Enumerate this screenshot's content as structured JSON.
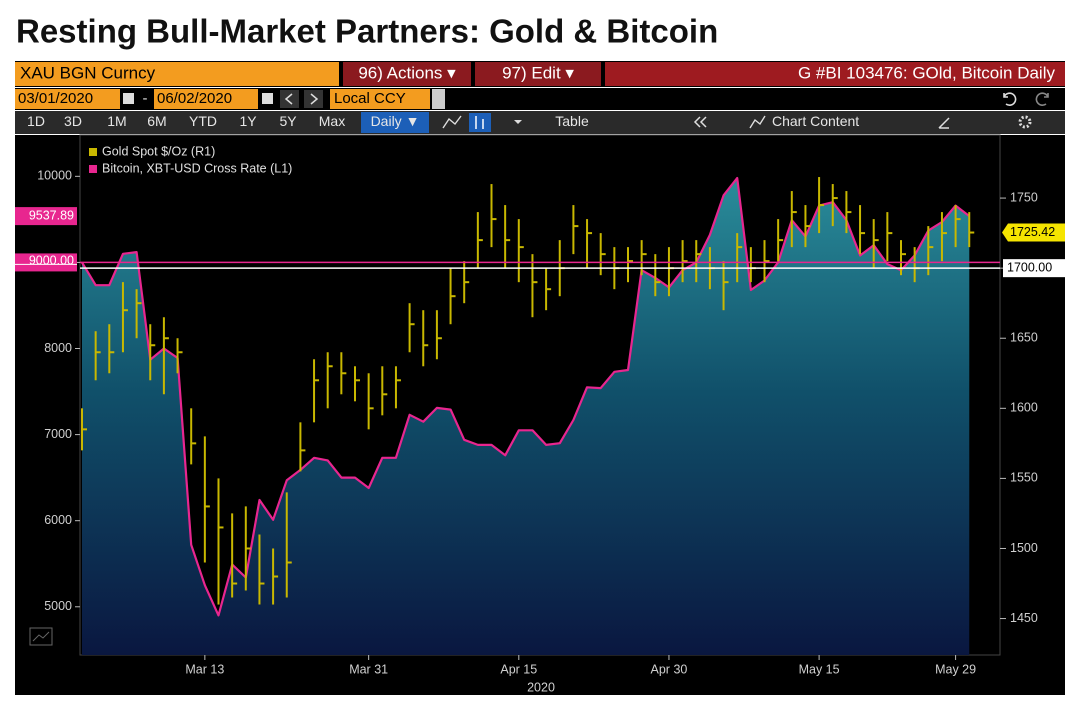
{
  "terminal": {
    "security": "XAU BGN Curncy",
    "actions": "96) Actions ▾",
    "edit": "97) Edit ▾",
    "chart_name": "G #BI 103476: GOld, Bitcoin Daily",
    "start_date": "03/01/2020",
    "date_sep": "-",
    "end_date": "06/02/2020",
    "currency": "Local CCY",
    "periods": [
      "1D",
      "3D",
      "1M",
      "6M",
      "YTD",
      "1Y",
      "5Y",
      "Max"
    ],
    "frequency": "Daily ▼",
    "table": "Table",
    "chart_content": "Chart Content"
  },
  "chart_data": {
    "type": "line",
    "title": "Resting Bull-Market Partners: Gold & Bitcoin",
    "xlabel": "2020",
    "categories": [
      null,
      null,
      null,
      null,
      null,
      null,
      null,
      null,
      null,
      "Mar 13",
      null,
      null,
      null,
      null,
      null,
      null,
      null,
      null,
      null,
      null,
      null,
      "Mar 31",
      null,
      null,
      null,
      null,
      null,
      null,
      null,
      null,
      null,
      null,
      "Apr 15",
      null,
      null,
      null,
      null,
      null,
      null,
      null,
      null,
      null,
      null,
      "Apr 30",
      null,
      null,
      null,
      null,
      null,
      null,
      null,
      null,
      null,
      null,
      "May 15",
      null,
      null,
      null,
      null,
      null,
      null,
      null,
      null,
      null,
      "May 29",
      null
    ],
    "series": [
      {
        "name": "Gold Spot $/Oz (R1)",
        "type": "hlc",
        "axis": "y2",
        "color": "#c9b800",
        "high": [
          1600,
          1655,
          1660,
          1690,
          1685,
          1660,
          1665,
          1650,
          1600,
          1580,
          1550,
          1525,
          1530,
          1510,
          1500,
          1540,
          1590,
          1635,
          1640,
          1640,
          1630,
          1625,
          1630,
          1630,
          1675,
          1670,
          1670,
          1700,
          1705,
          1740,
          1760,
          1745,
          1735,
          1710,
          1700,
          1720,
          1745,
          1735,
          1725,
          1715,
          1715,
          1720,
          1710,
          1715,
          1720,
          1720,
          1715,
          1705,
          1725,
          1715,
          1720,
          1735,
          1755,
          1745,
          1765,
          1760,
          1755,
          1745,
          1735,
          1740,
          1720,
          1715,
          1730,
          1740,
          1745,
          1740
        ],
        "low": [
          1570,
          1620,
          1625,
          1640,
          1650,
          1620,
          1610,
          1625,
          1560,
          1490,
          1460,
          1465,
          1470,
          1460,
          1460,
          1465,
          1555,
          1590,
          1600,
          1610,
          1605,
          1585,
          1595,
          1600,
          1640,
          1630,
          1635,
          1660,
          1675,
          1700,
          1715,
          1700,
          1690,
          1665,
          1670,
          1680,
          1710,
          1700,
          1695,
          1685,
          1690,
          1695,
          1680,
          1680,
          1690,
          1690,
          1685,
          1670,
          1690,
          1690,
          1690,
          1705,
          1715,
          1715,
          1725,
          1730,
          1725,
          1710,
          1700,
          1705,
          1695,
          1690,
          1695,
          1705,
          1715,
          1715
        ],
        "values": [
          1585,
          1640,
          1640,
          1670,
          1675,
          1645,
          1650,
          1640,
          1575,
          1530,
          1515,
          1475,
          1500,
          1475,
          1480,
          1490,
          1570,
          1620,
          1630,
          1625,
          1620,
          1600,
          1610,
          1620,
          1660,
          1645,
          1650,
          1680,
          1690,
          1720,
          1735,
          1720,
          1715,
          1690,
          1685,
          1700,
          1730,
          1725,
          1710,
          1700,
          1705,
          1710,
          1690,
          1700,
          1705,
          1710,
          1700,
          1690,
          1715,
          1700,
          1705,
          1720,
          1740,
          1730,
          1745,
          1750,
          1740,
          1725,
          1720,
          1725,
          1710,
          1700,
          1715,
          1725,
          1735,
          1725.42
        ]
      },
      {
        "name": "Bitcoin, XBT-USD Cross Rate (L1)",
        "type": "area",
        "axis": "y",
        "color": "#e8268f",
        "values": [
          9000,
          8735,
          8735,
          9100,
          9120,
          7870,
          8000,
          7890,
          5720,
          5250,
          4900,
          5490,
          5340,
          6240,
          6010,
          6470,
          6590,
          6730,
          6700,
          6500,
          6500,
          6380,
          6730,
          6730,
          7230,
          7150,
          7310,
          7290,
          6940,
          6880,
          6880,
          6760,
          7050,
          7050,
          6880,
          6900,
          7170,
          7550,
          7540,
          7730,
          7750,
          8910,
          8820,
          8710,
          8910,
          9000,
          9320,
          9780,
          9980,
          8680,
          8790,
          9000,
          9490,
          9300,
          9660,
          9700,
          9490,
          9080,
          9200,
          8980,
          8910,
          9080,
          9370,
          9470,
          9660,
          9537.89
        ]
      }
    ],
    "ylim": [
      4440,
      10480
    ],
    "yticks": [
      5000,
      6000,
      7000,
      8000,
      9000,
      10000
    ],
    "y2lim": [
      1424,
      1795
    ],
    "y2ticks": [
      1450,
      1500,
      1550,
      1600,
      1650,
      1700,
      1750
    ],
    "reference_lines": [
      {
        "axis": "y",
        "value": 9000,
        "label": "9000.00",
        "color": "#e8268f"
      },
      {
        "axis": "y2",
        "value": 1700,
        "label": "1700.00",
        "color": "#ffffff"
      }
    ],
    "last_value_labels": true,
    "grid": false,
    "legend": "top-left"
  }
}
